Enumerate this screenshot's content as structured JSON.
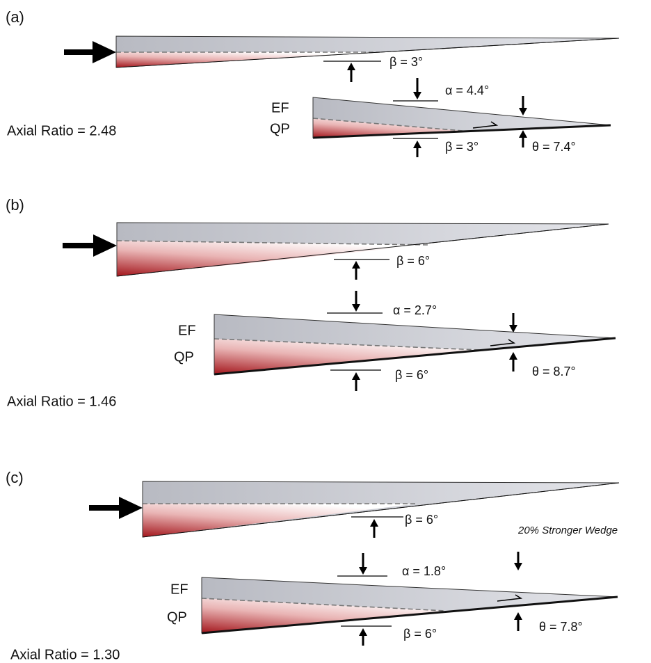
{
  "panels": [
    {
      "label": "(a)",
      "upper_wedge": {
        "beta": "β = 3°"
      },
      "lower_wedge": {
        "ef": "EF",
        "qp": "QP",
        "alpha": "α = 4.4°",
        "beta": "β = 3°",
        "theta": "θ = 7.4°"
      },
      "axial_ratio": "Axial Ratio = 2.48"
    },
    {
      "label": "(b)",
      "upper_wedge": {
        "beta": "β = 6°"
      },
      "lower_wedge": {
        "ef": "EF",
        "qp": "QP",
        "alpha": "α = 2.7°",
        "beta": "β = 6°",
        "theta": "θ = 8.7°"
      },
      "axial_ratio": "Axial Ratio = 1.46"
    },
    {
      "label": "(c)",
      "upper_wedge": {
        "beta": "β = 6°"
      },
      "lower_wedge": {
        "ef": "EF",
        "qp": "QP",
        "alpha": "α = 1.8°",
        "beta": "β = 6°",
        "theta": "θ = 7.8°"
      },
      "axial_ratio": "Axial Ratio = 1.30",
      "note": "20% Stronger Wedge"
    }
  ]
}
